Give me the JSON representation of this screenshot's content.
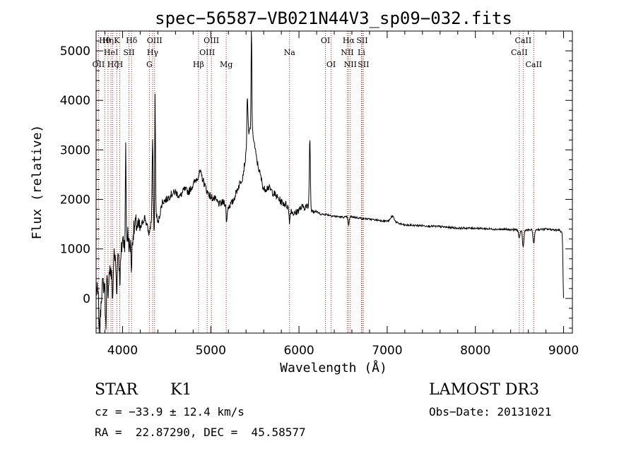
{
  "chart_data": {
    "type": "line",
    "title": "spec−56587−VB021N44V3_sp09−032.fits",
    "xlabel": "Wavelength (Å)",
    "ylabel": "Flux (relative)",
    "xlim": [
      3700,
      9100
    ],
    "ylim": [
      -700,
      5400
    ],
    "xticks": [
      4000,
      5000,
      6000,
      7000,
      8000,
      9000
    ],
    "yticks": [
      0,
      1000,
      2000,
      3000,
      4000,
      5000
    ],
    "spectrum_color": "#000000",
    "line_marker_color": "#b22222",
    "lines": [
      {
        "wave": 3798,
        "label": "Hθ",
        "row": 0
      },
      {
        "wave": 3835,
        "label": "Hη",
        "row": 0
      },
      {
        "wave": 3727,
        "label": "OII",
        "row": 2
      },
      {
        "wave": 3869,
        "label": "HeI",
        "row": 1
      },
      {
        "wave": 3889,
        "label": "Hζ",
        "row": 2
      },
      {
        "wave": 3934,
        "label": "K",
        "row": 0
      },
      {
        "wave": 3968,
        "label": "H",
        "row": 2
      },
      {
        "wave": 4072,
        "label": "SII",
        "row": 1
      },
      {
        "wave": 4102,
        "label": "Hδ",
        "row": 0
      },
      {
        "wave": 4304,
        "label": "G",
        "row": 2
      },
      {
        "wave": 4341,
        "label": "Hγ",
        "row": 1
      },
      {
        "wave": 4363,
        "label": "OIII",
        "row": 0
      },
      {
        "wave": 4861,
        "label": "Hβ",
        "row": 2
      },
      {
        "wave": 4959,
        "label": "OIII",
        "row": 1
      },
      {
        "wave": 5007,
        "label": "OIII",
        "row": 0
      },
      {
        "wave": 5175,
        "label": "Mg",
        "row": 2
      },
      {
        "wave": 5893,
        "label": "Na",
        "row": 1
      },
      {
        "wave": 6300,
        "label": "OI",
        "row": 0
      },
      {
        "wave": 6364,
        "label": "OI",
        "row": 2
      },
      {
        "wave": 6548,
        "label": "NII",
        "row": 1
      },
      {
        "wave": 6563,
        "label": "Hα",
        "row": 0
      },
      {
        "wave": 6583,
        "label": "NII",
        "row": 2
      },
      {
        "wave": 6716,
        "label": "SII",
        "row": 0
      },
      {
        "wave": 6708,
        "label": "Li",
        "row": 1
      },
      {
        "wave": 6731,
        "label": "SII",
        "row": 2
      },
      {
        "wave": 8498,
        "label": "CaII",
        "row": 1
      },
      {
        "wave": 8542,
        "label": "CaII",
        "row": 0
      },
      {
        "wave": 8662,
        "label": "CaII",
        "row": 2
      }
    ],
    "continuum": [
      [
        3700,
        150
      ],
      [
        3750,
        50
      ],
      [
        3780,
        300
      ],
      [
        3800,
        250
      ],
      [
        3830,
        500
      ],
      [
        3850,
        650
      ],
      [
        3880,
        400
      ],
      [
        3900,
        900
      ],
      [
        3930,
        700
      ],
      [
        3950,
        1000
      ],
      [
        3980,
        800
      ],
      [
        4000,
        1200
      ],
      [
        4030,
        1100
      ],
      [
        4060,
        1300
      ],
      [
        4080,
        1000
      ],
      [
        4100,
        1200
      ],
      [
        4150,
        1500
      ],
      [
        4200,
        1400
      ],
      [
        4250,
        1650
      ],
      [
        4300,
        1300
      ],
      [
        4340,
        1700
      ],
      [
        4380,
        1750
      ],
      [
        4400,
        1500
      ],
      [
        4450,
        1950
      ],
      [
        4500,
        2000
      ],
      [
        4550,
        2100
      ],
      [
        4600,
        2150
      ],
      [
        4650,
        2050
      ],
      [
        4700,
        2200
      ],
      [
        4750,
        2150
      ],
      [
        4800,
        2300
      ],
      [
        4850,
        2450
      ],
      [
        4880,
        2550
      ],
      [
        4920,
        2350
      ],
      [
        4960,
        2150
      ],
      [
        5000,
        2050
      ],
      [
        5050,
        2000
      ],
      [
        5100,
        1900
      ],
      [
        5150,
        1950
      ],
      [
        5200,
        1850
      ],
      [
        5250,
        1950
      ],
      [
        5300,
        2200
      ],
      [
        5360,
        2450
      ],
      [
        5400,
        2900
      ],
      [
        5440,
        3400
      ],
      [
        5480,
        3300
      ],
      [
        5520,
        2800
      ],
      [
        5560,
        2500
      ],
      [
        5600,
        2200
      ],
      [
        5650,
        2250
      ],
      [
        5700,
        2150
      ],
      [
        5750,
        2050
      ],
      [
        5800,
        1950
      ],
      [
        5850,
        1900
      ],
      [
        5900,
        1800
      ],
      [
        5950,
        1700
      ],
      [
        6000,
        1800
      ],
      [
        6050,
        1850
      ],
      [
        6100,
        1850
      ],
      [
        6150,
        1800
      ],
      [
        6200,
        1750
      ],
      [
        6250,
        1700
      ],
      [
        6300,
        1700
      ],
      [
        6400,
        1660
      ],
      [
        6500,
        1640
      ],
      [
        6600,
        1650
      ],
      [
        6700,
        1620
      ],
      [
        6800,
        1600
      ],
      [
        6900,
        1580
      ],
      [
        7000,
        1560
      ],
      [
        7100,
        1530
      ],
      [
        7200,
        1480
      ],
      [
        7400,
        1470
      ],
      [
        7600,
        1450
      ],
      [
        7800,
        1420
      ],
      [
        8000,
        1420
      ],
      [
        8200,
        1400
      ],
      [
        8400,
        1390
      ],
      [
        8600,
        1380
      ],
      [
        8800,
        1400
      ],
      [
        8950,
        1380
      ],
      [
        9000,
        1300
      ]
    ],
    "features": [
      {
        "wave": 3740,
        "amp": -800,
        "w": 8
      },
      {
        "wave": 3810,
        "amp": -900,
        "w": 5
      },
      {
        "wave": 3835,
        "amp": -700,
        "w": 5
      },
      {
        "wave": 3889,
        "amp": -600,
        "w": 5
      },
      {
        "wave": 3934,
        "amp": -550,
        "w": 6
      },
      {
        "wave": 3968,
        "amp": -500,
        "w": 6
      },
      {
        "wave": 4036,
        "amp": 1900,
        "w": 4
      },
      {
        "wave": 4102,
        "amp": -600,
        "w": 5
      },
      {
        "wave": 4340,
        "amp": 1500,
        "w": 5
      },
      {
        "wave": 4368,
        "amp": 2600,
        "w": 4
      },
      {
        "wave": 4361,
        "amp": -700,
        "w": 4
      },
      {
        "wave": 5180,
        "amp": -350,
        "w": 6
      },
      {
        "wave": 5415,
        "amp": 1000,
        "w": 6
      },
      {
        "wave": 5461,
        "amp": 2400,
        "w": 4
      },
      {
        "wave": 5893,
        "amp": -250,
        "w": 6
      },
      {
        "wave": 6123,
        "amp": 1400,
        "w": 6
      },
      {
        "wave": 6563,
        "amp": -180,
        "w": 6
      },
      {
        "wave": 7060,
        "amp": 120,
        "w": 20
      },
      {
        "wave": 8498,
        "amp": -180,
        "w": 8
      },
      {
        "wave": 8542,
        "amp": -350,
        "w": 8
      },
      {
        "wave": 8662,
        "amp": -280,
        "w": 8
      },
      {
        "wave": 9000,
        "amp": -1300,
        "w": 6
      }
    ]
  },
  "info": {
    "object_class": "STAR",
    "subclass": "K1",
    "survey": "LAMOST DR3",
    "redshift": "cz = −33.9 ± 12.4 km/s",
    "obs_date": "Obs−Date: 20131021",
    "coords": "RA =  22.87290, DEC =  45.58577"
  }
}
